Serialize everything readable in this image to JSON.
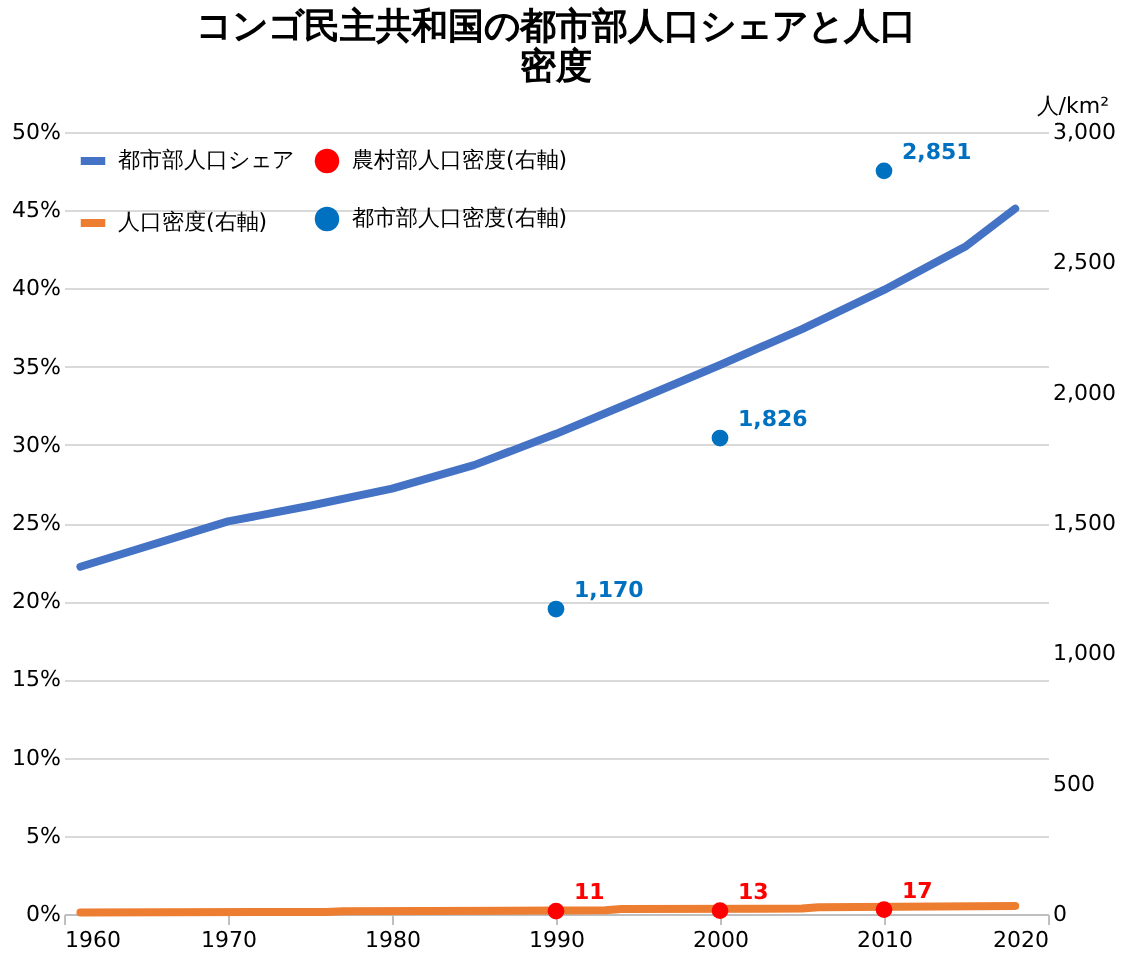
{
  "chart_data": {
    "type": "line",
    "title": "コンゴ民主共和国の都市部人口シェアと人口密度",
    "y2label": "人/km²",
    "xlim": [
      1960,
      2020
    ],
    "xticks": [
      1960,
      1970,
      1980,
      1990,
      2000,
      2010,
      2020
    ],
    "ylim": [
      0,
      50
    ],
    "yticks": [
      {
        "value": 0,
        "label": "0%"
      },
      {
        "value": 5,
        "label": "5%"
      },
      {
        "value": 10,
        "label": "10%"
      },
      {
        "value": 15,
        "label": "15%"
      },
      {
        "value": 20,
        "label": "20%"
      },
      {
        "value": 25,
        "label": "25%"
      },
      {
        "value": 30,
        "label": "30%"
      },
      {
        "value": 35,
        "label": "35%"
      },
      {
        "value": 40,
        "label": "40%"
      },
      {
        "value": 45,
        "label": "45%"
      },
      {
        "value": 50,
        "label": "50%"
      }
    ],
    "y2lim": [
      0,
      3000
    ],
    "y2ticks": [
      0,
      500,
      {
        "value": 1000,
        "label": "1,000"
      },
      {
        "value": 1500,
        "label": "1,500"
      },
      {
        "value": 2000,
        "label": "2,000"
      },
      {
        "value": 2500,
        "label": "2,500"
      },
      {
        "value": 3000,
        "label": "3,000"
      }
    ],
    "grid": "y",
    "legend": "top left",
    "series": [
      {
        "name": "都市部人口シェア",
        "color": "#4472c4",
        "x": [
          1961,
          1970,
          1975,
          1980,
          1985,
          1990,
          1995,
          2000,
          2005,
          2010,
          2015,
          2018
        ],
        "values": [
          22.2,
          25.1,
          26.1,
          27.2,
          28.7,
          30.7,
          32.9,
          35.1,
          37.4,
          39.9,
          42.7,
          45.1
        ]
      },
      {
        "name": "人口密度(右軸)",
        "axis": "y2",
        "color": "#ed7d31",
        "x": [
          1961,
          1976,
          1977,
          1993,
          1994,
          2005,
          2006,
          2018
        ],
        "values": [
          6,
          8,
          11,
          14,
          19,
          21,
          26,
          31
        ]
      },
      {
        "name": "農村部人口密度(右軸)",
        "type": "scatter",
        "axis": "y2",
        "color": "#ff0000",
        "x": [
          1990,
          2000,
          2010
        ],
        "values": [
          11,
          13,
          17
        ],
        "value_labels": [
          "11",
          "13",
          "17"
        ]
      },
      {
        "name": "都市部人口密度(右軸)",
        "type": "scatter",
        "axis": "y2",
        "color": "#0070c0",
        "x": [
          1990,
          2000,
          2010
        ],
        "values": [
          1170,
          1826,
          2851
        ],
        "value_labels": [
          "1,170",
          "1,826",
          "2,851"
        ]
      }
    ]
  }
}
